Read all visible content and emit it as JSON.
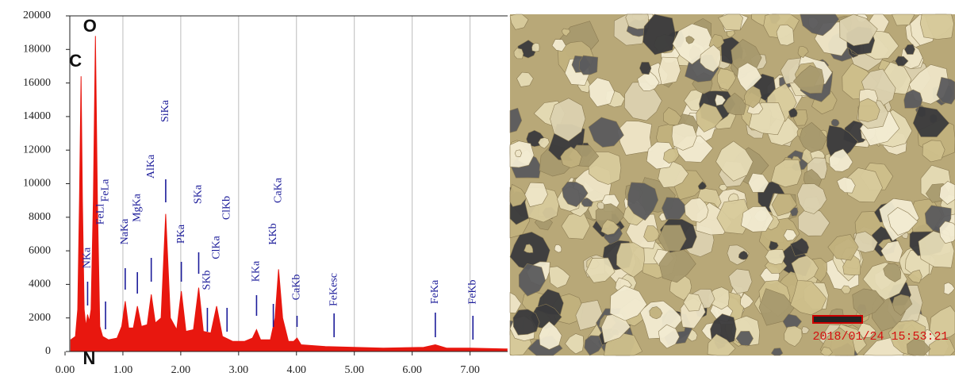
{
  "chart_data": {
    "type": "area",
    "color": "#e8170f",
    "grid": "x",
    "xlim": [
      0,
      7.65
    ],
    "ylim": [
      0,
      20000
    ],
    "xticks": [
      {
        "value": 0,
        "label": "0.00"
      },
      {
        "value": 1,
        "label": "1.00"
      },
      {
        "value": 2,
        "label": "2.00"
      },
      {
        "value": 3,
        "label": "3.00"
      },
      {
        "value": 4,
        "label": "4.00"
      },
      {
        "value": 5,
        "label": "5.00"
      },
      {
        "value": 6,
        "label": "6.00"
      },
      {
        "value": 7,
        "label": "7.00"
      }
    ],
    "yticks": [
      0,
      2000,
      4000,
      6000,
      8000,
      10000,
      12000,
      14000,
      16000,
      18000,
      20000
    ],
    "x": [
      0.1,
      0.18,
      0.22,
      0.25,
      0.277,
      0.3,
      0.33,
      0.36,
      0.39,
      0.42,
      0.45,
      0.49,
      0.525,
      0.56,
      0.6,
      0.65,
      0.75,
      0.9,
      0.98,
      1.04,
      1.1,
      1.18,
      1.25,
      1.32,
      1.42,
      1.49,
      1.56,
      1.66,
      1.74,
      1.82,
      1.93,
      2.01,
      2.09,
      2.22,
      2.31,
      2.39,
      2.52,
      2.62,
      2.72,
      2.9,
      3.1,
      3.24,
      3.31,
      3.38,
      3.55,
      3.63,
      3.69,
      3.76,
      3.86,
      3.95,
      4.01,
      4.08,
      4.5,
      5.5,
      6.2,
      6.4,
      6.6,
      7.0,
      7.64
    ],
    "values": [
      700,
      900,
      2500,
      9000,
      16400,
      9000,
      2500,
      1500,
      2200,
      1800,
      2500,
      9000,
      18800,
      9000,
      1500,
      900,
      700,
      800,
      1500,
      3000,
      1400,
      1400,
      2700,
      1500,
      1600,
      3400,
      1700,
      2000,
      8200,
      2000,
      1300,
      3600,
      1200,
      1300,
      3800,
      1200,
      1100,
      2700,
      900,
      600,
      600,
      800,
      1300,
      700,
      700,
      2000,
      4900,
      2000,
      600,
      600,
      800,
      400,
      300,
      200,
      250,
      400,
      200,
      200,
      150
    ],
    "element_labels": [
      {
        "label": "C",
        "x": 0.277
      },
      {
        "label": "O",
        "x": 0.525
      },
      {
        "label": "N",
        "x": 0.39
      }
    ],
    "peak_labels": [
      {
        "label": "NKa",
        "x": 0.39
      },
      {
        "label": "FeLl",
        "x": 0.62
      },
      {
        "label": "FeLa",
        "x": 0.7
      },
      {
        "label": "NaKa",
        "x": 1.04
      },
      {
        "label": "MgKa",
        "x": 1.25
      },
      {
        "label": "AlKa",
        "x": 1.49
      },
      {
        "label": "SiKa",
        "x": 1.74
      },
      {
        "label": "PKa",
        "x": 2.01
      },
      {
        "label": "SKa",
        "x": 2.31
      },
      {
        "label": "SKb",
        "x": 2.46
      },
      {
        "label": "ClKa",
        "x": 2.62
      },
      {
        "label": "ClKb",
        "x": 2.8
      },
      {
        "label": "KKa",
        "x": 3.31
      },
      {
        "label": "KKb",
        "x": 3.6
      },
      {
        "label": "CaKa",
        "x": 3.69
      },
      {
        "label": "CaKb",
        "x": 4.01
      },
      {
        "label": "FeKesc",
        "x": 4.65
      },
      {
        "label": "FeKa",
        "x": 6.4
      },
      {
        "label": "FeKb",
        "x": 7.05
      }
    ]
  },
  "photo": {
    "timestamp": "2018/01/24 15:53:21"
  }
}
